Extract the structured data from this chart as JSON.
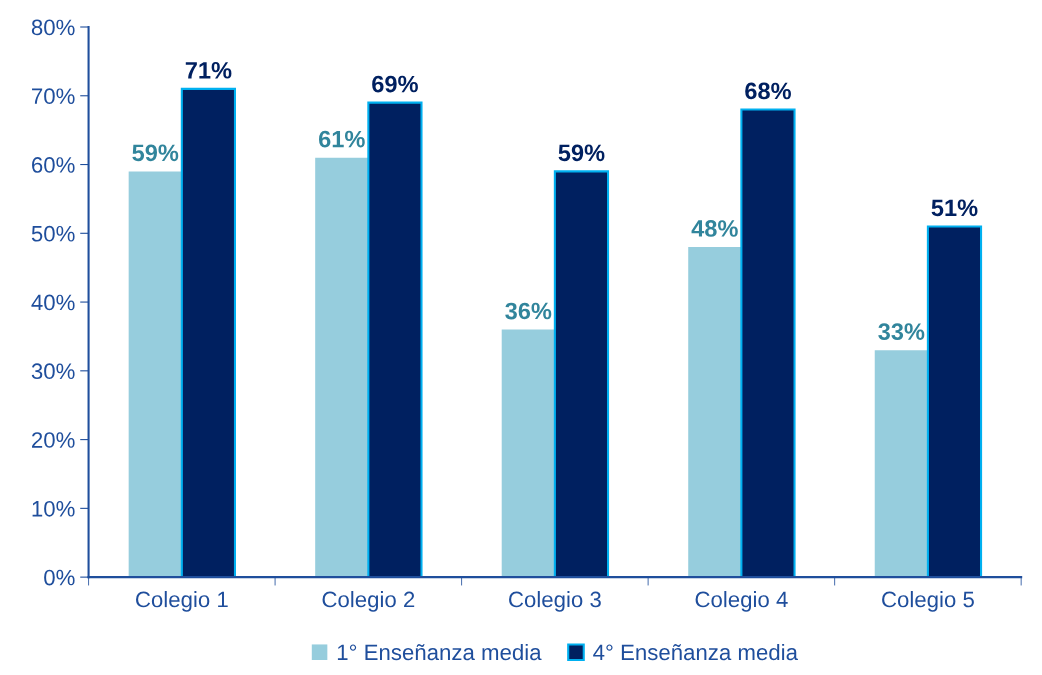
{
  "chart_data": {
    "type": "bar",
    "categories": [
      "Colegio 1",
      "Colegio 2",
      "Colegio 3",
      "Colegio 4",
      "Colegio 5"
    ],
    "series": [
      {
        "name": "1° Enseñanza media",
        "color": "#96cddd",
        "values": [
          59,
          61,
          36,
          48,
          33
        ],
        "value_labels": [
          "59%",
          "61%",
          "36%",
          "48%",
          "33%"
        ]
      },
      {
        "name": "4° Enseñanza media",
        "color": "#002060",
        "values": [
          71,
          69,
          59,
          68,
          51
        ],
        "value_labels": [
          "71%",
          "69%",
          "59%",
          "68%",
          "51%"
        ]
      }
    ],
    "ylim": [
      0,
      80
    ],
    "yticks": [
      {
        "value": 0,
        "label": "0%"
      },
      {
        "value": 10,
        "label": "10%"
      },
      {
        "value": 20,
        "label": "20%"
      },
      {
        "value": 30,
        "label": "30%"
      },
      {
        "value": 40,
        "label": "40%"
      },
      {
        "value": 50,
        "label": "50%"
      },
      {
        "value": 60,
        "label": "60%"
      },
      {
        "value": 70,
        "label": "70%"
      },
      {
        "value": 80,
        "label": "80%"
      }
    ],
    "grid": false,
    "legend": "bottom"
  }
}
